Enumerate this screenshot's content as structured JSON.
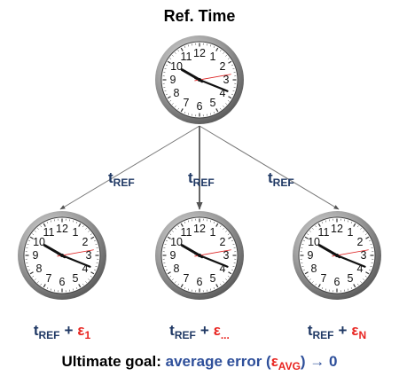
{
  "header": {
    "title": "Ref. Time"
  },
  "clock_numerals": [
    "12",
    "1",
    "2",
    "3",
    "4",
    "5",
    "6",
    "7",
    "8",
    "9",
    "10",
    "11"
  ],
  "edges": [
    {
      "symbol": "t",
      "subscript": "REF"
    },
    {
      "symbol": "t",
      "subscript": "REF"
    },
    {
      "symbol": "t",
      "subscript": "REF"
    }
  ],
  "outputs": [
    {
      "base": "t",
      "base_subscript": "REF",
      "operator": "+",
      "error": "ε",
      "error_subscript": "1"
    },
    {
      "base": "t",
      "base_subscript": "REF",
      "operator": "+",
      "error": "ε",
      "error_subscript": "..."
    },
    {
      "base": "t",
      "base_subscript": "REF",
      "operator": "+",
      "error": "ε",
      "error_subscript": "N"
    }
  ],
  "goal": {
    "prefix": "Ultimate goal:",
    "text": "average error (",
    "error": "ε",
    "error_subscript": "AVG",
    "suffix": ") → 0"
  }
}
